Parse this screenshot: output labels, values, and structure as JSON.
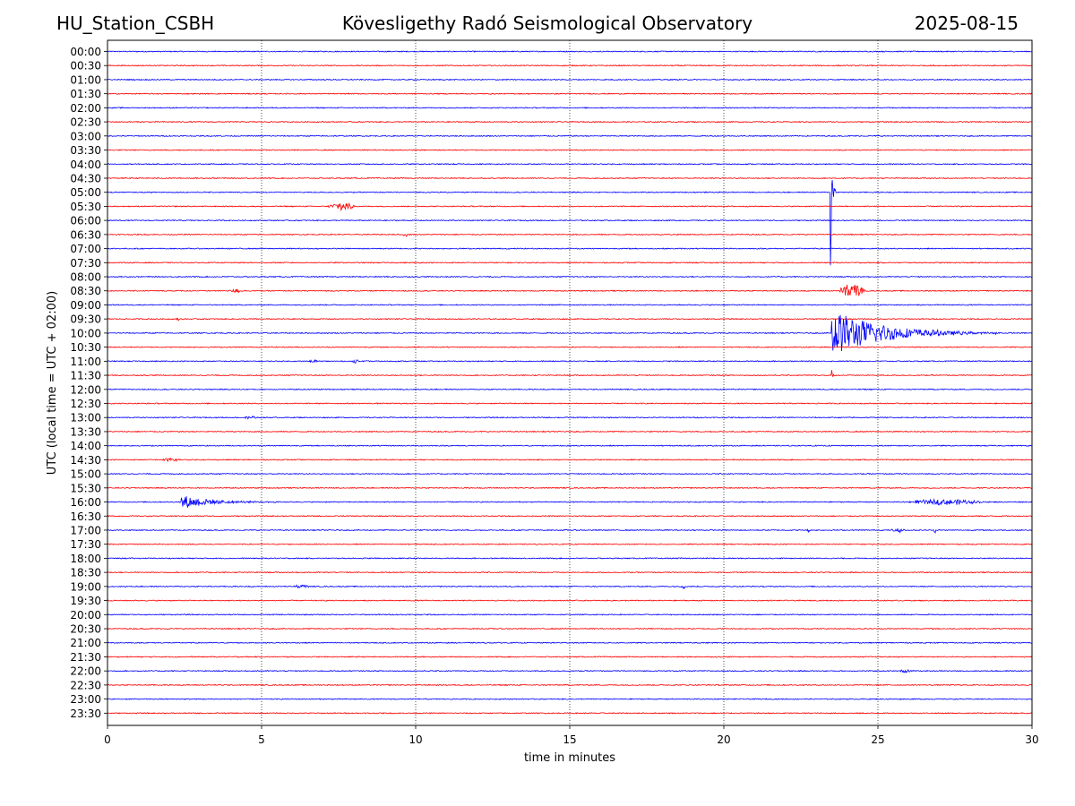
{
  "header": {
    "station": "HU_Station_CSBH",
    "observatory": "Kövesligethy Radó Seismological Observatory",
    "date": "2025-08-15"
  },
  "colors": {
    "even_trace": "#0000ff",
    "odd_trace": "#ff0000",
    "axis": "#000000",
    "grid": "#000000"
  },
  "chart_data": {
    "type": "line",
    "title": "",
    "xlabel": "time in minutes",
    "ylabel": "UTC (local time = UTC + 02:00)",
    "xlim": [
      0,
      30
    ],
    "xticks": [
      0,
      5,
      10,
      15,
      20,
      25,
      30
    ],
    "grid": "vertical dotted at x ticks",
    "legend": "none",
    "row_labels": [
      "00:00",
      "00:30",
      "01:00",
      "01:30",
      "02:00",
      "02:30",
      "03:00",
      "03:30",
      "04:00",
      "04:30",
      "05:00",
      "05:30",
      "06:00",
      "06:30",
      "07:00",
      "07:30",
      "08:00",
      "08:30",
      "09:00",
      "09:30",
      "10:00",
      "10:30",
      "11:00",
      "11:30",
      "12:00",
      "12:30",
      "13:00",
      "13:30",
      "14:00",
      "14:30",
      "15:00",
      "15:30",
      "16:00",
      "16:30",
      "17:00",
      "17:30",
      "18:00",
      "18:30",
      "19:00",
      "19:30",
      "20:00",
      "20:30",
      "21:00",
      "21:30",
      "22:00",
      "22:30",
      "23:00",
      "23:30"
    ],
    "events": [
      {
        "row": "05:00",
        "start_min": 23.45,
        "duration_min": 0.2,
        "peak_amplitude_rows": 8.8,
        "kind": "spike"
      },
      {
        "row": "05:30",
        "start_min": 7.1,
        "duration_min": 1.0,
        "peak_amplitude_rows": 0.3,
        "kind": "burst"
      },
      {
        "row": "06:30",
        "start_min": 9.5,
        "duration_min": 0.4,
        "peak_amplitude_rows": 0.12,
        "kind": "burst"
      },
      {
        "row": "08:30",
        "start_min": 3.9,
        "duration_min": 0.5,
        "peak_amplitude_rows": 0.15,
        "kind": "burst"
      },
      {
        "row": "08:30",
        "start_min": 23.7,
        "duration_min": 0.9,
        "peak_amplitude_rows": 0.55,
        "kind": "burst"
      },
      {
        "row": "09:30",
        "start_min": 2.2,
        "duration_min": 0.3,
        "peak_amplitude_rows": 0.1,
        "kind": "burst"
      },
      {
        "row": "10:00",
        "start_min": 23.5,
        "duration_min": 5.5,
        "peak_amplitude_rows": 1.7,
        "kind": "coda"
      },
      {
        "row": "11:00",
        "start_min": 6.5,
        "duration_min": 0.4,
        "peak_amplitude_rows": 0.12,
        "kind": "burst"
      },
      {
        "row": "11:00",
        "start_min": 7.9,
        "duration_min": 0.3,
        "peak_amplitude_rows": 0.1,
        "kind": "burst"
      },
      {
        "row": "11:30",
        "start_min": 23.5,
        "duration_min": 0.15,
        "peak_amplitude_rows": 0.4,
        "kind": "spike"
      },
      {
        "row": "13:00",
        "start_min": 4.4,
        "duration_min": 0.5,
        "peak_amplitude_rows": 0.1,
        "kind": "burst"
      },
      {
        "row": "14:30",
        "start_min": 1.7,
        "duration_min": 0.7,
        "peak_amplitude_rows": 0.12,
        "kind": "burst"
      },
      {
        "row": "16:00",
        "start_min": 2.4,
        "duration_min": 3.3,
        "peak_amplitude_rows": 0.5,
        "kind": "coda"
      },
      {
        "row": "16:00",
        "start_min": 25.9,
        "duration_min": 2.6,
        "peak_amplitude_rows": 0.2,
        "kind": "burst"
      },
      {
        "row": "17:00",
        "start_min": 22.7,
        "duration_min": 0.1,
        "peak_amplitude_rows": 0.15,
        "kind": "burst"
      },
      {
        "row": "17:00",
        "start_min": 25.4,
        "duration_min": 0.5,
        "peak_amplitude_rows": 0.15,
        "kind": "burst"
      },
      {
        "row": "17:00",
        "start_min": 26.8,
        "duration_min": 0.1,
        "peak_amplitude_rows": 0.2,
        "kind": "burst"
      },
      {
        "row": "19:00",
        "start_min": 6.0,
        "duration_min": 0.6,
        "peak_amplitude_rows": 0.15,
        "kind": "burst"
      },
      {
        "row": "19:00",
        "start_min": 18.6,
        "duration_min": 0.2,
        "peak_amplitude_rows": 0.15,
        "kind": "burst"
      },
      {
        "row": "22:00",
        "start_min": 25.6,
        "duration_min": 0.6,
        "peak_amplitude_rows": 0.12,
        "kind": "burst"
      }
    ]
  }
}
